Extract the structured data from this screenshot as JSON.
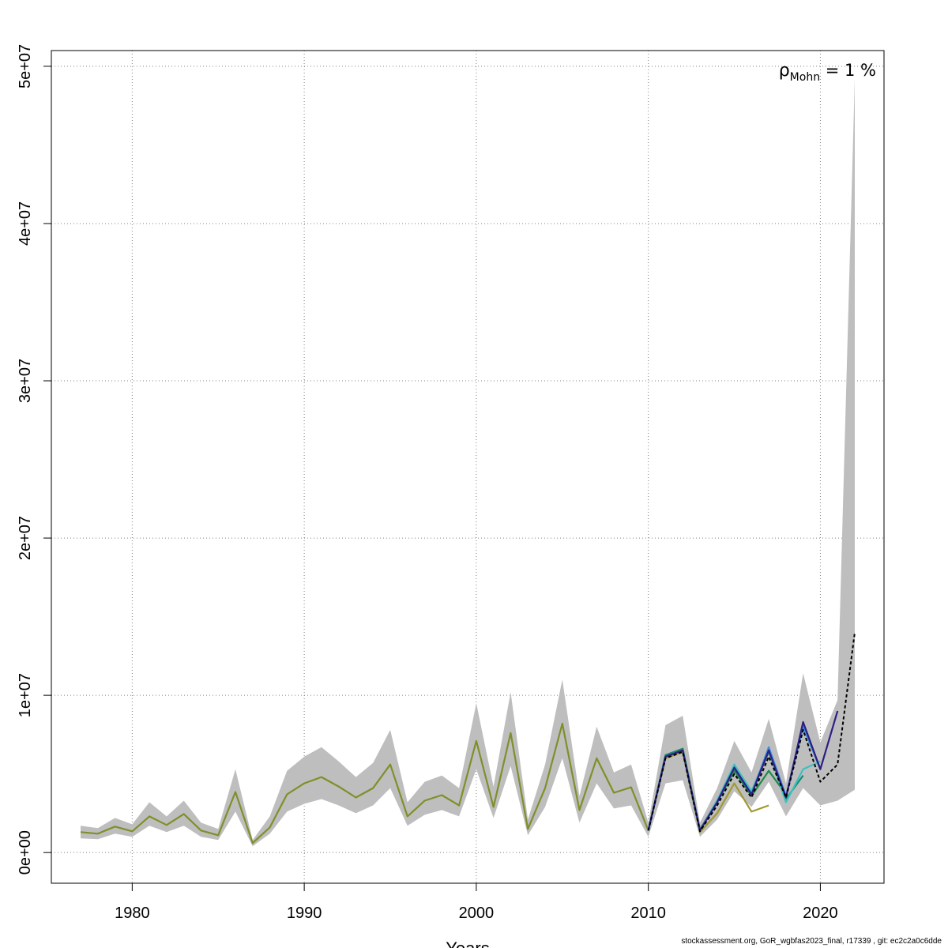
{
  "chart_data": {
    "type": "line",
    "title": "",
    "xlabel": "Years",
    "ylabel": "",
    "xlim": [
      1975.3,
      2023.7
    ],
    "ylim": [
      -1950000,
      51000000
    ],
    "x_ticks": [
      1980,
      1990,
      2000,
      2010,
      2020
    ],
    "y_ticks": [
      0,
      10000000,
      20000000,
      30000000,
      40000000,
      50000000
    ],
    "y_tick_labels": [
      "0e+00",
      "1e+07",
      "2e+07",
      "3e+07",
      "4e+07",
      "5e+07"
    ],
    "grid": true,
    "annotation": {
      "symbol": "ρ",
      "subscript": "Mohn",
      "text": " = 1 %"
    },
    "colors": {
      "band": "#bebebe",
      "base": "#000000",
      "common": "#7f8f2a",
      "ret1": "#2d1e84",
      "ret2": "#3c8de0",
      "ret3": "#3dc0c0",
      "ret4": "#1e8a4a",
      "ret5": "#178a70",
      "ret6": "#a09a2c"
    },
    "band": {
      "x": [
        1977,
        1978,
        1979,
        1980,
        1981,
        1982,
        1983,
        1984,
        1985,
        1986,
        1987,
        1988,
        1989,
        1990,
        1991,
        1992,
        1993,
        1994,
        1995,
        1996,
        1997,
        1998,
        1999,
        2000,
        2001,
        2002,
        2003,
        2004,
        2005,
        2006,
        2007,
        2008,
        2009,
        2010,
        2011,
        2012,
        2013,
        2014,
        2015,
        2016,
        2017,
        2018,
        2019,
        2020,
        2021,
        2022
      ],
      "lower": [
        0.9,
        0.85,
        1.2,
        1.0,
        1.7,
        1.3,
        1.7,
        1.0,
        0.8,
        2.6,
        0.4,
        1.2,
        2.6,
        3.1,
        3.4,
        3.0,
        2.5,
        3.0,
        4.1,
        1.7,
        2.4,
        2.7,
        2.3,
        5.3,
        2.2,
        5.5,
        1.1,
        2.9,
        6.0,
        1.9,
        4.4,
        2.8,
        3.0,
        1.0,
        4.4,
        4.6,
        1.0,
        2.1,
        3.9,
        2.9,
        4.5,
        2.3,
        4.1,
        3.0,
        3.3,
        4.0
      ],
      "upper": [
        1.7,
        1.55,
        2.2,
        1.8,
        3.2,
        2.3,
        3.3,
        1.9,
        1.5,
        5.3,
        0.8,
        2.3,
        5.2,
        6.1,
        6.7,
        5.8,
        4.8,
        5.7,
        7.8,
        3.2,
        4.5,
        4.9,
        4.1,
        9.5,
        4.2,
        10.2,
        2.1,
        5.6,
        11.0,
        3.6,
        8.0,
        5.1,
        5.6,
        1.9,
        8.1,
        8.7,
        1.9,
        4.1,
        7.1,
        5.1,
        8.5,
        4.4,
        11.4,
        7.0,
        9.7,
        49.2
      ]
    },
    "series": [
      {
        "key": "common",
        "x": [
          1977,
          1978,
          1979,
          1980,
          1981,
          1982,
          1983,
          1984,
          1985,
          1986,
          1987,
          1988,
          1989,
          1990,
          1991,
          1992,
          1993,
          1994,
          1995,
          1996,
          1997,
          1998,
          1999,
          2000,
          2001,
          2002,
          2003,
          2004,
          2005,
          2006,
          2007,
          2008,
          2009,
          2010
        ],
        "y": [
          1.3,
          1.2,
          1.65,
          1.35,
          2.3,
          1.75,
          2.45,
          1.4,
          1.1,
          3.85,
          0.6,
          1.6,
          3.7,
          4.4,
          4.8,
          4.2,
          3.5,
          4.1,
          5.6,
          2.3,
          3.3,
          3.65,
          3.0,
          7.1,
          2.9,
          7.6,
          1.5,
          4.1,
          8.2,
          2.7,
          6.0,
          3.8,
          4.15,
          1.4
        ],
        "dashed": false
      },
      {
        "key": "ret5",
        "x": [
          2010,
          2011,
          2012,
          2013,
          2014,
          2015,
          2016,
          2017,
          2018,
          2019
        ],
        "y": [
          1.4,
          6.2,
          6.6,
          1.45,
          3.3,
          5.5,
          3.8,
          6.4,
          3.4,
          4.9
        ],
        "dashed": false
      },
      {
        "key": "ret6",
        "x": [
          2010,
          2011,
          2012,
          2013,
          2014,
          2015,
          2016,
          2017
        ],
        "y": [
          1.4,
          6.0,
          6.4,
          1.3,
          2.5,
          4.4,
          2.6,
          3.0
        ],
        "dashed": false
      },
      {
        "key": "ret4",
        "x": [
          2010,
          2011,
          2012,
          2013,
          2014,
          2015,
          2016,
          2017,
          2018
        ],
        "y": [
          1.4,
          6.1,
          6.6,
          1.45,
          3.2,
          5.2,
          3.6,
          5.2,
          3.7
        ],
        "dashed": false
      },
      {
        "key": "ret3",
        "x": [
          2010,
          2011,
          2012,
          2013,
          2014,
          2015,
          2016,
          2017,
          2018,
          2019,
          2020
        ],
        "y": [
          1.4,
          6.1,
          6.5,
          1.4,
          3.3,
          5.6,
          3.9,
          6.5,
          3.2,
          5.3,
          5.8
        ],
        "dashed": false
      },
      {
        "key": "ret2",
        "x": [
          2010,
          2011,
          2012,
          2013,
          2014,
          2015,
          2016,
          2017,
          2018,
          2019,
          2020
        ],
        "y": [
          1.4,
          6.1,
          6.5,
          1.4,
          3.2,
          5.4,
          3.7,
          6.7,
          3.6,
          8.0,
          5.3
        ],
        "dashed": false
      },
      {
        "key": "ret1",
        "x": [
          2010,
          2011,
          2012,
          2013,
          2014,
          2015,
          2016,
          2017,
          2018,
          2019,
          2020,
          2021
        ],
        "y": [
          1.4,
          6.1,
          6.5,
          1.4,
          3.2,
          5.4,
          3.7,
          6.5,
          3.5,
          8.3,
          5.3,
          9.0
        ],
        "dashed": false
      },
      {
        "key": "base",
        "x": [
          2010,
          2011,
          2012,
          2013,
          2014,
          2015,
          2016,
          2017,
          2018,
          2019,
          2020,
          2021,
          2022
        ],
        "y": [
          1.4,
          6.0,
          6.4,
          1.35,
          3.0,
          5.0,
          3.5,
          6.1,
          3.5,
          7.8,
          4.5,
          5.6,
          14.0
        ],
        "dashed": true
      }
    ],
    "y_scale": 1000000
  },
  "footer": "stockassessment.org, GoR_wgbfas2023_final, r17339 , git: ec2c2a0c6dde"
}
